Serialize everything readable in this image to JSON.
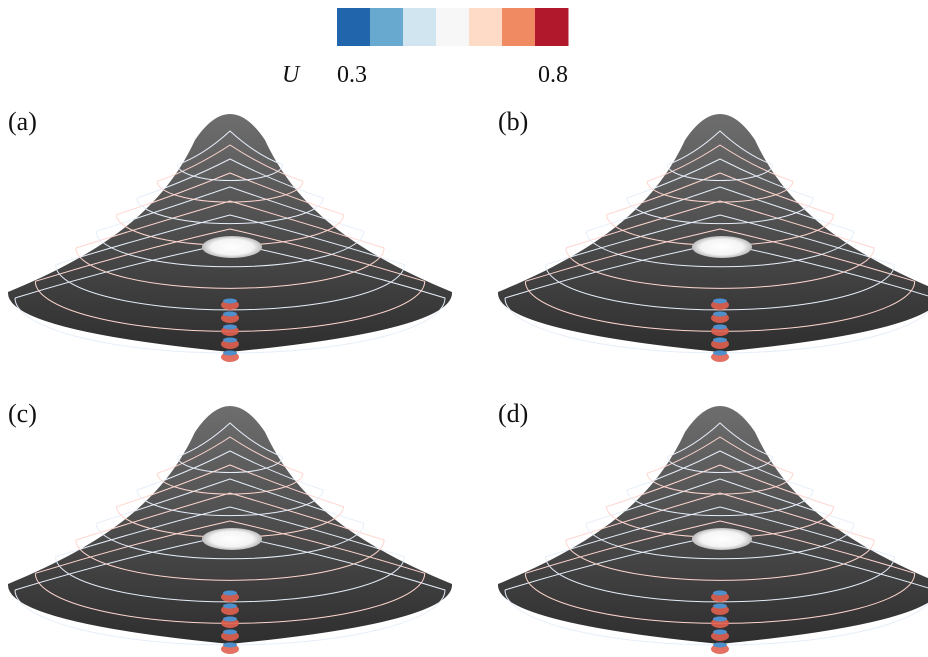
{
  "colorbar": {
    "label": "U",
    "min_label": "0.3",
    "max_label": "0.8",
    "colors": [
      "#2166ac",
      "#67a9cf",
      "#d1e5f0",
      "#f7f7f7",
      "#fddbc7",
      "#ef8a62",
      "#b2182b"
    ]
  },
  "panels": [
    {
      "label": "(a)"
    },
    {
      "label": "(b)"
    },
    {
      "label": "(c)"
    },
    {
      "label": "(d)"
    }
  ]
}
